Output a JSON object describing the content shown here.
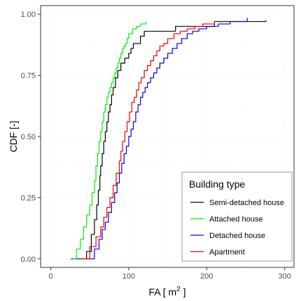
{
  "chart_data": {
    "type": "line",
    "step": true,
    "xlabel_base": "FA [ m",
    "xlabel_sup": "2",
    "xlabel_end": " ]",
    "ylabel": "CDF [-]",
    "xlim": [
      -13,
      312
    ],
    "ylim": [
      -0.035,
      1.035
    ],
    "xticks": [
      0,
      100,
      200,
      300
    ],
    "yticks": [
      0.0,
      0.25,
      0.5,
      0.75,
      1.0
    ],
    "ytick_labels": [
      "0.00",
      "0.25",
      "0.50",
      "0.75",
      "1.00"
    ],
    "grid": true,
    "legend": {
      "title": "Building type",
      "placement": "bottom-right"
    },
    "series": [
      {
        "name": "Semi-detached house",
        "color": "#000000",
        "x": [
          26,
          46,
          52,
          56,
          59,
          61,
          63,
          64,
          66,
          68,
          70,
          72,
          74,
          76,
          78,
          80,
          83,
          86,
          90,
          95,
          100,
          103,
          106,
          110,
          115,
          120,
          130,
          160,
          210,
          276
        ],
        "y": [
          0.0,
          0.03,
          0.1,
          0.16,
          0.22,
          0.28,
          0.34,
          0.38,
          0.43,
          0.48,
          0.52,
          0.56,
          0.6,
          0.63,
          0.67,
          0.7,
          0.74,
          0.77,
          0.8,
          0.82,
          0.84,
          0.86,
          0.88,
          0.88,
          0.91,
          0.93,
          0.93,
          0.95,
          0.97,
          0.975
        ]
      },
      {
        "name": "Attached house",
        "color": "#00ee00",
        "x": [
          28,
          33,
          38,
          42,
          46,
          50,
          53,
          56,
          58,
          60,
          62,
          64,
          66,
          68,
          70,
          72,
          74,
          76,
          78,
          80,
          82,
          84,
          86,
          88,
          90,
          92,
          94,
          96,
          98,
          100,
          105,
          110,
          115,
          122
        ],
        "y": [
          0.0,
          0.04,
          0.08,
          0.13,
          0.18,
          0.22,
          0.27,
          0.32,
          0.38,
          0.43,
          0.48,
          0.52,
          0.56,
          0.6,
          0.63,
          0.66,
          0.68,
          0.7,
          0.72,
          0.74,
          0.76,
          0.78,
          0.8,
          0.82,
          0.84,
          0.86,
          0.87,
          0.88,
          0.9,
          0.92,
          0.94,
          0.95,
          0.96,
          0.97
        ]
      },
      {
        "name": "Detached house",
        "color": "#0000ee",
        "x": [
          47,
          56,
          62,
          66,
          70,
          74,
          78,
          82,
          85,
          88,
          91,
          94,
          97,
          100,
          103,
          106,
          109,
          112,
          115,
          118,
          121,
          124,
          128,
          132,
          136,
          140,
          145,
          150,
          156,
          162,
          168,
          175,
          182,
          190,
          200,
          215,
          230,
          252
        ],
        "y": [
          0.0,
          0.04,
          0.08,
          0.12,
          0.15,
          0.19,
          0.23,
          0.27,
          0.31,
          0.35,
          0.39,
          0.43,
          0.46,
          0.5,
          0.53,
          0.56,
          0.6,
          0.63,
          0.66,
          0.68,
          0.7,
          0.72,
          0.74,
          0.76,
          0.78,
          0.8,
          0.82,
          0.84,
          0.86,
          0.88,
          0.9,
          0.92,
          0.93,
          0.94,
          0.95,
          0.96,
          0.97,
          0.985
        ]
      },
      {
        "name": "Apartment",
        "color": "#ee0000",
        "x": [
          38,
          50,
          58,
          64,
          68,
          72,
          76,
          80,
          84,
          88,
          90,
          92,
          95,
          98,
          101,
          104,
          107,
          110,
          113,
          116,
          120,
          124,
          128,
          132,
          136,
          140,
          145,
          150,
          158,
          166,
          175,
          185,
          195,
          210
        ],
        "y": [
          0.0,
          0.05,
          0.09,
          0.13,
          0.17,
          0.21,
          0.25,
          0.3,
          0.35,
          0.4,
          0.44,
          0.48,
          0.52,
          0.56,
          0.6,
          0.64,
          0.66,
          0.69,
          0.72,
          0.74,
          0.77,
          0.79,
          0.81,
          0.83,
          0.85,
          0.87,
          0.88,
          0.9,
          0.92,
          0.93,
          0.94,
          0.95,
          0.96,
          0.97
        ]
      }
    ]
  }
}
